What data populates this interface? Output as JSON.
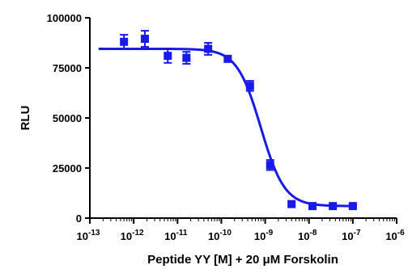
{
  "chart_data": {
    "type": "scatter",
    "title": "",
    "xlabel": "Peptide YY [M] + 20 μM Forskolin",
    "ylabel": "RLU",
    "x_scale": "log",
    "xlim": [
      1e-13,
      1e-06
    ],
    "ylim": [
      0,
      100000
    ],
    "y_ticks": [
      0,
      25000,
      50000,
      75000,
      100000
    ],
    "y_tick_labels": [
      "0",
      "25000",
      "50000",
      "75000",
      "100000"
    ],
    "x_tick_exponents": [
      "-13",
      "-12",
      "-11",
      "-10",
      "-9",
      "-8",
      "-7",
      "-6"
    ],
    "x_tick_base": "10",
    "marker": "square",
    "color": "#1a1ae6",
    "series": [
      {
        "points": [
          {
            "x": 6e-13,
            "y": 88000,
            "err": 3500
          },
          {
            "x": 1.8e-12,
            "y": 89500,
            "err": 4000
          },
          {
            "x": 6e-12,
            "y": 81000,
            "err": 3500
          },
          {
            "x": 1.6e-11,
            "y": 80000,
            "err": 3000
          },
          {
            "x": 5e-11,
            "y": 84500,
            "err": 3000
          },
          {
            "x": 1.4e-10,
            "y": 79500,
            "err": 1500
          },
          {
            "x": 4.5e-10,
            "y": 66000,
            "err": 2500
          },
          {
            "x": 1.3e-09,
            "y": 26500,
            "err": 2500
          },
          {
            "x": 4e-09,
            "y": 7000,
            "err": 1000
          },
          {
            "x": 1.2e-08,
            "y": 6000,
            "err": 500
          },
          {
            "x": 3.5e-08,
            "y": 6000,
            "err": 500
          },
          {
            "x": 1e-07,
            "y": 6000,
            "err": 500
          }
        ]
      }
    ],
    "fit": {
      "top": 84500,
      "bottom": 6000,
      "log_ic50": -9.1,
      "hill": 1.6
    }
  }
}
